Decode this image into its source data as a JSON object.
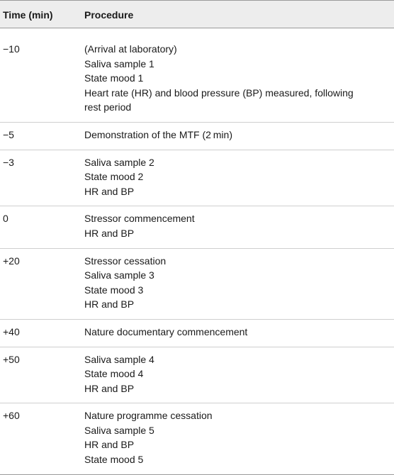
{
  "table": {
    "headers": {
      "time": "Time (min)",
      "procedure": "Procedure"
    },
    "rows": [
      {
        "time": "−10",
        "procedure": [
          "(Arrival at laboratory)",
          "Saliva sample 1",
          "State mood 1",
          "Heart rate (HR) and blood pressure (BP) measured, following",
          "rest period"
        ]
      },
      {
        "time": "−5",
        "procedure": [
          "Demonstration of the MTF (2 min)"
        ]
      },
      {
        "time": "−3",
        "procedure": [
          "Saliva sample 2",
          "State mood 2",
          "HR and BP"
        ]
      },
      {
        "time": "0",
        "procedure": [
          "Stressor commencement",
          "HR and BP"
        ]
      },
      {
        "time": "+20",
        "procedure": [
          "Stressor cessation",
          "Saliva sample 3",
          "State mood 3",
          "HR and BP"
        ]
      },
      {
        "time": "+40",
        "procedure": [
          "Nature documentary commencement"
        ]
      },
      {
        "time": "+50",
        "procedure": [
          "Saliva sample 4",
          "State mood 4",
          "HR and BP"
        ]
      },
      {
        "time": "+60",
        "procedure": [
          "Nature programme cessation",
          "Saliva sample 5",
          "HR and BP",
          "State mood 5"
        ]
      }
    ]
  }
}
